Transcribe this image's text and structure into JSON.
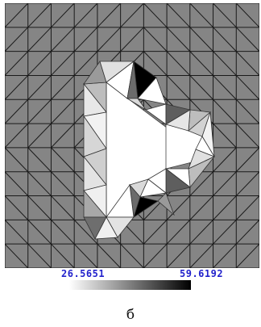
{
  "scale": {
    "min_label": "26.5651",
    "max_label": "59.6192",
    "label_color": "#2222cc",
    "gradient_start": "#ffffff",
    "gradient_end": "#000000"
  },
  "mesh": {
    "grid_color": "#1a1a1a",
    "background_fill": "#858585",
    "hole_fill": "#ffffff"
  },
  "caption": "б"
}
